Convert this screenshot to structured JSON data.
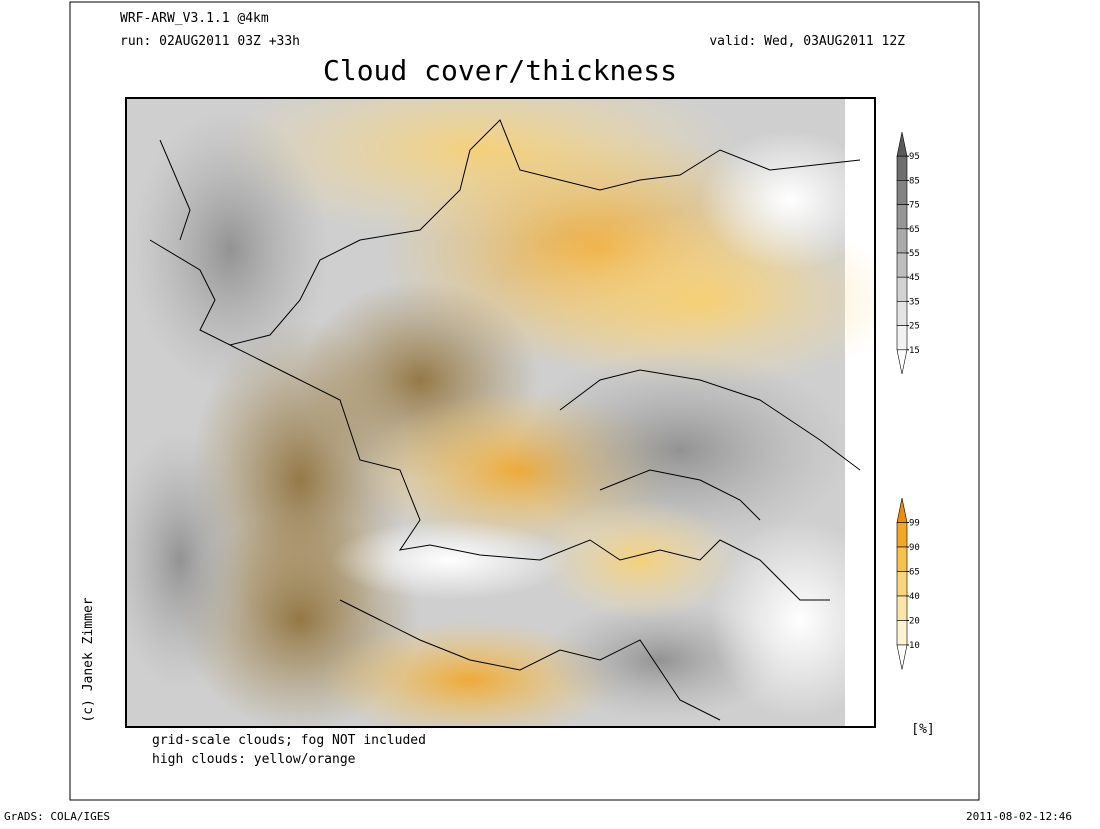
{
  "header": {
    "model": "WRF-ARW_V3.1.1 @4km",
    "run": "run: 02AUG2011 03Z +33h",
    "valid": "valid: Wed, 03AUG2011 12Z"
  },
  "title": "Cloud cover/thickness",
  "gray_scale": {
    "ticks": [
      95,
      85,
      75,
      65,
      55,
      45,
      35,
      25,
      15
    ],
    "colors": [
      "#5a5a5a",
      "#6e6e6e",
      "#828282",
      "#969696",
      "#aaaaaa",
      "#bebebe",
      "#d2d2d2",
      "#e4e4e4",
      "#f2f2f2",
      "#ffffff"
    ]
  },
  "color_scale": {
    "ticks": [
      99,
      90,
      65,
      40,
      20,
      10
    ],
    "colors": [
      "#f08c00",
      "#f5a623",
      "#f8c24a",
      "#fad678",
      "#fce6a6",
      "#fef4d2",
      "#ffffff"
    ]
  },
  "unit": "[%]",
  "notes": [
    "grid-scale clouds; fog NOT included",
    "high clouds: yellow/orange"
  ],
  "credit": "(c) Janek Zimmer",
  "footer": {
    "left": "GrADS: COLA/IGES",
    "right": "2011-08-02-12:46"
  }
}
